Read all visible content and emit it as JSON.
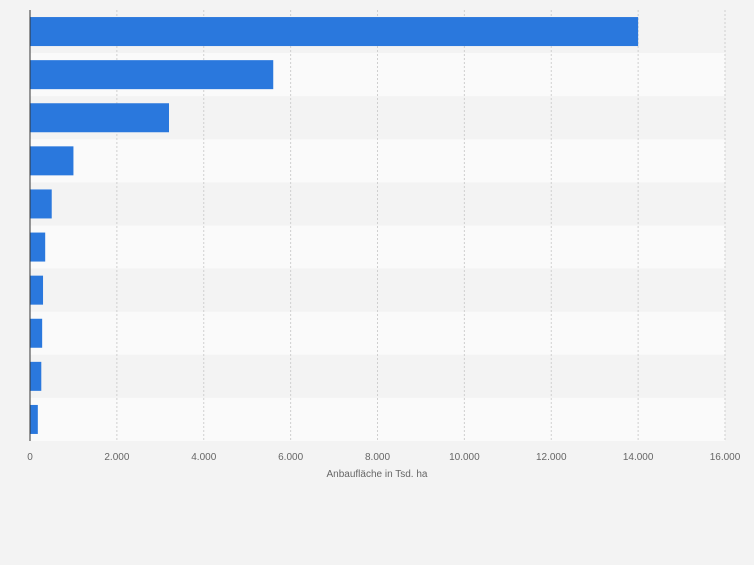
{
  "chart_data": {
    "type": "bar",
    "orientation": "horizontal",
    "categories": [
      "",
      "",
      "",
      "",
      "",
      "",
      "",
      "",
      "",
      ""
    ],
    "values": [
      14000,
      5600,
      3200,
      1000,
      500,
      350,
      300,
      280,
      260,
      180
    ],
    "title": "",
    "xlabel": "Anbaufläche in Tsd. ha",
    "ylabel": "",
    "xlim": [
      0,
      16000
    ],
    "xticks": [
      0,
      2000,
      4000,
      6000,
      8000,
      10000,
      12000,
      14000,
      16000
    ],
    "xtick_labels": [
      "0",
      "2.000",
      "4.000",
      "6.000",
      "8.000",
      "10.000",
      "12.000",
      "14.000",
      "16.000"
    ],
    "grid": "vertical",
    "bar_color": "#2a78dd",
    "band_colors": [
      "#f3f3f3",
      "#fafafa"
    ]
  }
}
